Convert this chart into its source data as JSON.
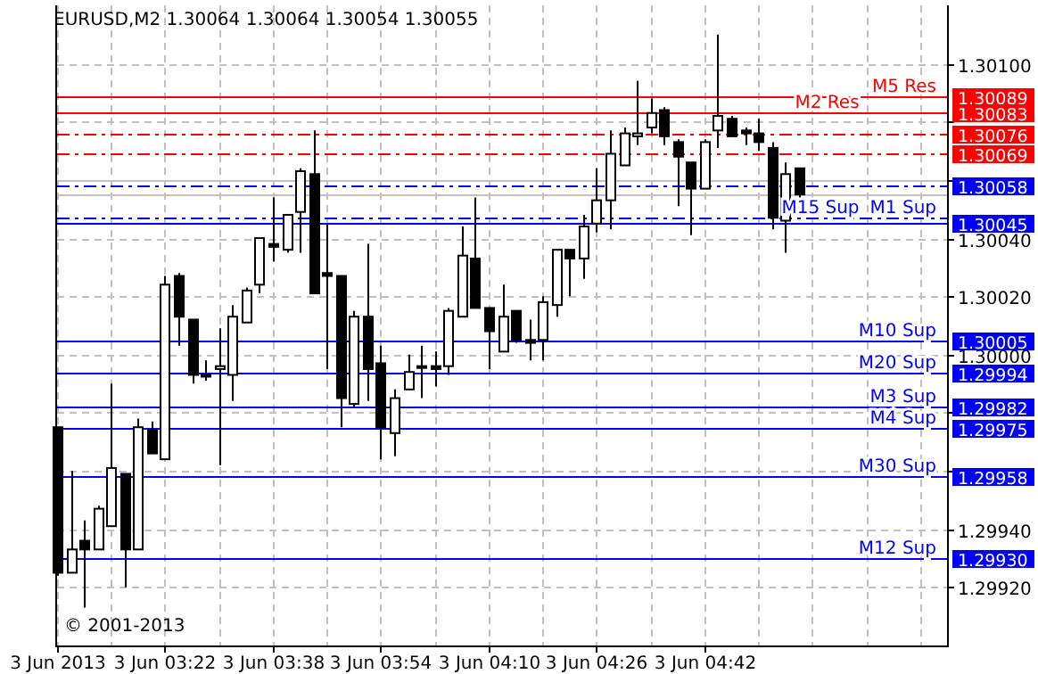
{
  "chart_data": {
    "type": "candlestick",
    "title": "EURUSD,M2 1.30064 1.30064 1.30054 1.30055",
    "x": [
      "2013-06-03T03:06",
      "2013-06-03T03:08",
      "2013-06-03T03:10",
      "2013-06-03T03:12",
      "2013-06-03T03:14",
      "2013-06-03T03:16",
      "2013-06-03T03:18",
      "2013-06-03T03:20",
      "2013-06-03T03:22",
      "2013-06-03T03:24",
      "2013-06-03T03:26",
      "2013-06-03T03:28",
      "2013-06-03T03:30",
      "2013-06-03T03:32",
      "2013-06-03T03:34",
      "2013-06-03T03:36",
      "2013-06-03T03:38",
      "2013-06-03T03:40",
      "2013-06-03T03:42",
      "2013-06-03T03:44",
      "2013-06-03T03:46",
      "2013-06-03T03:48",
      "2013-06-03T03:50",
      "2013-06-03T03:52",
      "2013-06-03T03:54",
      "2013-06-03T03:56",
      "2013-06-03T03:58",
      "2013-06-03T04:00",
      "2013-06-03T04:02",
      "2013-06-03T04:04",
      "2013-06-03T04:06",
      "2013-06-03T04:08",
      "2013-06-03T04:10",
      "2013-06-03T04:12",
      "2013-06-03T04:14",
      "2013-06-03T04:16",
      "2013-06-03T04:18",
      "2013-06-03T04:20",
      "2013-06-03T04:22",
      "2013-06-03T04:24",
      "2013-06-03T04:26",
      "2013-06-03T04:28",
      "2013-06-03T04:30",
      "2013-06-03T04:32",
      "2013-06-03T04:34",
      "2013-06-03T04:36",
      "2013-06-03T04:38",
      "2013-06-03T04:40",
      "2013-06-03T04:42",
      "2013-06-03T04:44",
      "2013-06-03T04:46",
      "2013-06-03T04:48",
      "2013-06-03T04:50",
      "2013-06-03T04:52",
      "2013-06-03T04:54",
      "2013-06-03T04:56"
    ],
    "ohlc": [
      [
        1.29975,
        1.29975,
        1.29924,
        1.29925
      ],
      [
        1.29925,
        1.2996,
        1.29925,
        1.29933
      ],
      [
        1.29936,
        1.29943,
        1.29913,
        1.29933
      ],
      [
        1.29933,
        1.29948,
        1.29933,
        1.29947
      ],
      [
        1.29941,
        1.2999,
        1.29941,
        1.29961
      ],
      [
        1.29959,
        1.29959,
        1.2992,
        1.29933
      ],
      [
        1.29933,
        1.29978,
        1.29933,
        1.29975
      ],
      [
        1.29974,
        1.29977,
        1.29966,
        1.29966
      ],
      [
        1.29964,
        1.30027,
        1.29964,
        1.30024
      ],
      [
        1.30027,
        1.30028,
        1.30003,
        1.30013
      ],
      [
        1.30012,
        1.30012,
        1.2999,
        1.29993
      ],
      [
        1.29993,
        1.29998,
        1.29991,
        1.29993
      ],
      [
        1.29995,
        1.30009,
        1.29962,
        1.29996
      ],
      [
        1.29993,
        1.30017,
        1.29984,
        1.30013
      ],
      [
        1.30011,
        1.30023,
        1.30011,
        1.30022
      ],
      [
        1.30024,
        1.3004,
        1.30021,
        1.3004
      ],
      [
        1.30038,
        1.30054,
        1.30032,
        1.30037
      ],
      [
        1.30036,
        1.30048,
        1.30035,
        1.30048
      ],
      [
        1.30049,
        1.30064,
        1.30035,
        1.30063
      ],
      [
        1.30062,
        1.30077,
        1.30021,
        1.30021
      ],
      [
        1.30028,
        1.30045,
        1.29995,
        1.30027
      ],
      [
        1.30027,
        1.30027,
        1.29975,
        1.29985
      ],
      [
        1.29983,
        1.30015,
        1.29982,
        1.30013
      ],
      [
        1.30013,
        1.30038,
        1.29984,
        1.29995
      ],
      [
        1.29997,
        1.30003,
        1.29964,
        1.29975
      ],
      [
        1.29973,
        1.29988,
        1.29965,
        1.29985
      ],
      [
        1.29988,
        1.3,
        1.29988,
        1.29994
      ],
      [
        1.29996,
        1.30003,
        1.29985,
        1.29996
      ],
      [
        1.29996,
        1.30001,
        1.29989,
        1.29995
      ],
      [
        1.29996,
        1.30016,
        1.29993,
        1.30015
      ],
      [
        1.30013,
        1.30044,
        1.30013,
        1.30034
      ],
      [
        1.30033,
        1.30054,
        1.30016,
        1.30016
      ],
      [
        1.30016,
        1.30016,
        1.29995,
        1.30008
      ],
      [
        1.30001,
        1.30024,
        1.30001,
        1.30013
      ],
      [
        1.30015,
        1.30015,
        1.30004,
        1.30005
      ],
      [
        1.30005,
        1.30012,
        1.29998,
        1.30004
      ],
      [
        1.30005,
        1.3002,
        1.29998,
        1.30018
      ],
      [
        1.30017,
        1.30036,
        1.30013,
        1.30036
      ],
      [
        1.30036,
        1.30036,
        1.3002,
        1.30033
      ],
      [
        1.30033,
        1.30048,
        1.30026,
        1.30044
      ],
      [
        1.30045,
        1.30064,
        1.30042,
        1.30053
      ],
      [
        1.30053,
        1.30077,
        1.30043,
        1.30069
      ],
      [
        1.30065,
        1.30078,
        1.30065,
        1.30076
      ],
      [
        1.30075,
        1.30094,
        1.30072,
        1.30076
      ],
      [
        1.30078,
        1.30088,
        1.30076,
        1.30083
      ],
      [
        1.30084,
        1.30085,
        1.30072,
        1.30075
      ],
      [
        1.30073,
        1.30074,
        1.30051,
        1.30068
      ],
      [
        1.30066,
        1.30066,
        1.30041,
        1.30057
      ],
      [
        1.30057,
        1.30074,
        1.30057,
        1.30073
      ],
      [
        1.30077,
        1.3011,
        1.30071,
        1.30082
      ],
      [
        1.30081,
        1.30082,
        1.30075,
        1.30075
      ],
      [
        1.30077,
        1.30078,
        1.30072,
        1.30076
      ],
      [
        1.30076,
        1.30081,
        1.3007,
        1.30073
      ],
      [
        1.30071,
        1.30073,
        1.30043,
        1.30047
      ],
      [
        1.30046,
        1.30066,
        1.30035,
        1.30062
      ],
      [
        1.30064,
        1.30064,
        1.30054,
        1.30055
      ]
    ],
    "xlim": [
      "2013-06-03T03:06",
      "2013-06-03T05:18"
    ],
    "xticks": [
      {
        "value": "2013-06-03T03:06",
        "label": "3 Jun 2013"
      },
      {
        "value": "2013-06-03T03:14",
        "label": null
      },
      {
        "value": "2013-06-03T03:22",
        "label": "3 Jun 03:22"
      },
      {
        "value": "2013-06-03T03:30",
        "label": null
      },
      {
        "value": "2013-06-03T03:38",
        "label": "3 Jun 03:38"
      },
      {
        "value": "2013-06-03T03:46",
        "label": null
      },
      {
        "value": "2013-06-03T03:54",
        "label": "3 Jun 03:54"
      },
      {
        "value": "2013-06-03T04:02",
        "label": null
      },
      {
        "value": "2013-06-03T04:10",
        "label": "3 Jun 04:10"
      },
      {
        "value": "2013-06-03T04:18",
        "label": null
      },
      {
        "value": "2013-06-03T04:26",
        "label": "3 Jun 04:26"
      },
      {
        "value": "2013-06-03T04:34",
        "label": null
      },
      {
        "value": "2013-06-03T04:42",
        "label": "3 Jun 04:42"
      },
      {
        "value": "2013-06-03T04:50",
        "label": null
      },
      {
        "value": "2013-06-03T04:58",
        "label": null
      },
      {
        "value": "2013-06-03T05:06",
        "label": null
      },
      {
        "value": "2013-06-03T05:14",
        "label": null
      }
    ],
    "ylim": [
      1.299,
      1.3012
    ],
    "yticks": [
      {
        "value": 1.2992,
        "label": "1.29920"
      },
      {
        "value": 1.2994,
        "label": "1.29940"
      },
      {
        "value": 1.2996,
        "label": null
      },
      {
        "value": 1.2998,
        "label": null
      },
      {
        "value": 1.3,
        "label": "1.30000"
      },
      {
        "value": 1.3002,
        "label": "1.30020"
      },
      {
        "value": 1.3004,
        "label": "1.30040"
      },
      {
        "value": 1.3006,
        "label": null
      },
      {
        "value": 1.3008,
        "label": null
      },
      {
        "value": 1.301,
        "label": "1.30100"
      }
    ],
    "grid": true,
    "ref_lines": [
      {
        "axis": "y",
        "value": 1.30089,
        "label": "M5 Res",
        "color": "#ff0000",
        "line_style": "solid"
      },
      {
        "axis": "y",
        "value": 1.30083,
        "label": "M2 Res",
        "color": "#ff0000",
        "line_style": "solid"
      },
      {
        "axis": "y",
        "value": 1.30076,
        "label": null,
        "color": "#ff0000",
        "line_style": "dashed"
      },
      {
        "axis": "y",
        "value": 1.30069,
        "label": null,
        "color": "#ff0000",
        "line_style": "dashed"
      },
      {
        "axis": "y",
        "value": 1.30058,
        "label": null,
        "color": "#0000ff",
        "line_style": "dashed"
      },
      {
        "axis": "y",
        "value": 1.30045,
        "label": "M1 Sup",
        "color": "#0000ff",
        "line_style": "solid"
      },
      {
        "axis": "y",
        "value": 1.30047,
        "label": "M15 Sup",
        "color": "#0000ff",
        "line_style": "dashed"
      },
      {
        "axis": "y",
        "value": 1.30005,
        "label": "M10 Sup",
        "color": "#0000ff",
        "line_style": "solid"
      },
      {
        "axis": "y",
        "value": 1.29994,
        "label": "M20 Sup",
        "color": "#0000ff",
        "line_style": "solid"
      },
      {
        "axis": "y",
        "value": 1.29982,
        "label": "M3 Sup",
        "color": "#0000ff",
        "line_style": "solid"
      },
      {
        "axis": "y",
        "value": 1.29975,
        "label": "M4 Sup",
        "color": "#0000ff",
        "line_style": "solid"
      },
      {
        "axis": "y",
        "value": 1.29958,
        "label": "M30 Sup",
        "color": "#0000ff",
        "line_style": "solid"
      },
      {
        "axis": "y",
        "value": 1.2993,
        "label": "M12 Sup",
        "color": "#0000ff",
        "line_style": "solid"
      },
      {
        "axis": "y",
        "value": 1.3006,
        "label": null,
        "color": "#c0c0c0",
        "line_style": "solid"
      },
      {
        "axis": "y",
        "value": 1.30055,
        "label": null,
        "color": "#c0c0c0",
        "line_style": "solid"
      }
    ],
    "annotations": [
      "© 2001-2013",
      {
        "text": "1.30089",
        "x": "2013-06-03T05:18",
        "y": 1.30089
      },
      {
        "text": "1.30083",
        "x": "2013-06-03T05:18",
        "y": 1.30083
      },
      {
        "text": "1.30076",
        "x": "2013-06-03T05:18",
        "y": 1.30076
      },
      {
        "text": "1.30069",
        "x": "2013-06-03T05:18",
        "y": 1.30069
      },
      {
        "text": "1.30058",
        "x": "2013-06-03T05:18",
        "y": 1.30058
      },
      {
        "text": "1.30045",
        "x": "2013-06-03T05:18",
        "y": 1.30045
      },
      {
        "text": "1.30005",
        "x": "2013-06-03T05:18",
        "y": 1.30005
      },
      {
        "text": "1.29994",
        "x": "2013-06-03T05:18",
        "y": 1.29994
      },
      {
        "text": "1.29982",
        "x": "2013-06-03T05:18",
        "y": 1.29982
      },
      {
        "text": "1.29975",
        "x": "2013-06-03T05:18",
        "y": 1.29975
      },
      {
        "text": "1.29958",
        "x": "2013-06-03T05:18",
        "y": 1.29958
      },
      {
        "text": "1.29930",
        "x": "2013-06-03T05:18",
        "y": 1.2993
      }
    ]
  }
}
